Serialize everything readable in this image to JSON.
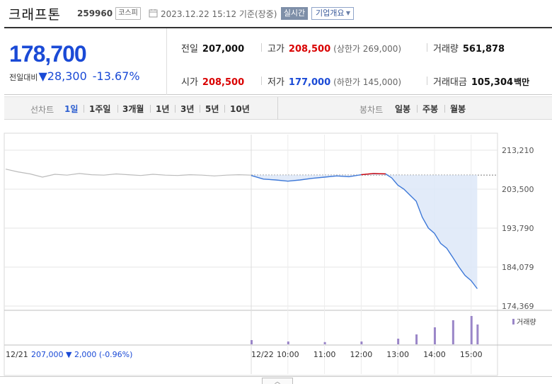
{
  "header": {
    "name": "크래프톤",
    "code": "259960",
    "market": "코스피",
    "datetime": "2023.12.22 15:12  기준(장중)",
    "live_badge": "실시간",
    "company_button": "기업개요"
  },
  "price": {
    "current": "178,700",
    "change_label": "전일대비",
    "change_arrow": "▼",
    "change": "28,300",
    "change_pct": "-13.67%"
  },
  "summary": {
    "prev_close_label": "전일",
    "prev_close": "207,000",
    "high_label": "고가",
    "high": "208,500",
    "upper_limit": "(상한가 269,000)",
    "volume_label": "거래량",
    "volume": "561,878",
    "open_label": "시가",
    "open": "208,500",
    "low_label": "저가",
    "low": "177,000",
    "lower_limit": "(하한가 145,000)",
    "amount_label": "거래대금",
    "amount": "105,304",
    "amount_unit": "백만"
  },
  "periodbar": {
    "line_label": "선차트",
    "line_items": [
      "1일",
      "1주일",
      "3개월",
      "1년",
      "3년",
      "5년",
      "10년"
    ],
    "active": "1일",
    "candle_label": "봉차트",
    "candle_items": [
      "일봉",
      "주봉",
      "월봉"
    ]
  },
  "colors": {
    "down": "#1a4ad6",
    "up": "#d90000",
    "line_today": "#3d78d8",
    "line_prev": "#bbbbbb",
    "fill_today": "#dde8f8",
    "volume": "#9a86c8"
  },
  "chart_data": {
    "type": "line",
    "y_ticks": [
      "213,210",
      "203,500",
      "193,790",
      "184,079",
      "174,369"
    ],
    "ylim": [
      174369,
      213210
    ],
    "x_ticks": [
      "12/22",
      "10:00",
      "11:00",
      "12:00",
      "13:00",
      "14:00",
      "15:00"
    ],
    "reference_price": 207000,
    "prev_day": {
      "date": "12/21",
      "close": "207,000",
      "change_arrow": "▼",
      "change": "2,000",
      "change_pct": "(-0.96%)",
      "x": [
        0,
        0.05,
        0.1,
        0.15,
        0.2,
        0.25,
        0.3,
        0.35,
        0.4,
        0.45,
        0.5,
        0.55,
        0.6,
        0.65,
        0.7,
        0.75,
        0.8,
        0.85,
        0.9,
        0.95,
        1.0
      ],
      "y": [
        208500,
        207800,
        207300,
        206500,
        207200,
        207000,
        207400,
        207100,
        207000,
        207300,
        207100,
        206900,
        207200,
        207000,
        206900,
        207100,
        207000,
        206800,
        207000,
        207100,
        207000
      ]
    },
    "today": {
      "x": [
        "09:00",
        "09:20",
        "09:40",
        "10:00",
        "10:20",
        "10:40",
        "11:00",
        "11:20",
        "11:40",
        "12:00",
        "12:20",
        "12:40",
        "12:50",
        "13:00",
        "13:10",
        "13:20",
        "13:30",
        "13:40",
        "13:50",
        "14:00",
        "14:10",
        "14:20",
        "14:30",
        "14:40",
        "14:50",
        "15:00",
        "15:10"
      ],
      "y": [
        206900,
        206000,
        205800,
        205500,
        205800,
        206200,
        206500,
        206800,
        206600,
        207100,
        207400,
        207300,
        206300,
        204500,
        203500,
        202000,
        200500,
        196500,
        193800,
        192500,
        190000,
        188800,
        186500,
        184100,
        182000,
        180700,
        178700
      ]
    },
    "volume_label": "거래량",
    "volume": {
      "x": [
        "09:00",
        "10:00",
        "11:00",
        "12:00",
        "13:00",
        "13:30",
        "14:00",
        "14:30",
        "15:00",
        "15:10"
      ],
      "relative": [
        0.15,
        0.1,
        0.08,
        0.1,
        0.2,
        0.35,
        0.6,
        0.85,
        1.0,
        0.7
      ]
    },
    "grid": true
  }
}
